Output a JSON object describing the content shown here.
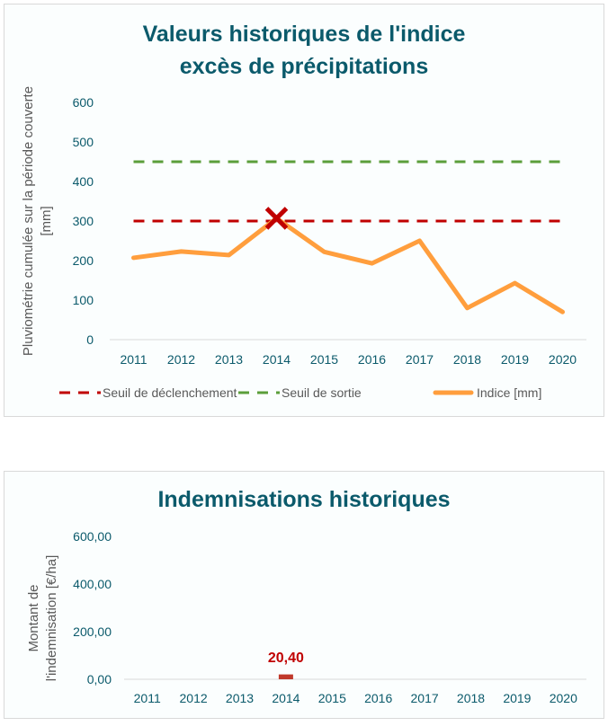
{
  "chart_data": [
    {
      "type": "line",
      "title": [
        "Valeurs historiques de l'indice",
        "excès de précipitations"
      ],
      "xlabel": "",
      "ylabel": [
        "Pluviométrie cumulée sur la période couverte",
        "[mm]"
      ],
      "categories": [
        "2011",
        "2012",
        "2013",
        "2014",
        "2015",
        "2016",
        "2017",
        "2018",
        "2019",
        "2020"
      ],
      "yticks": [
        "0",
        "100",
        "200",
        "300",
        "400",
        "500",
        "600"
      ],
      "ylim": [
        0,
        600
      ],
      "grid": false,
      "legend_position": "bottom",
      "series": [
        {
          "name": "Seuil de déclenchement",
          "style": "dashed",
          "color": "#c00000",
          "values": [
            300,
            300,
            300,
            300,
            300,
            300,
            300,
            300,
            300,
            300
          ]
        },
        {
          "name": "Seuil de sortie",
          "style": "dashed",
          "color": "#5b9e3a",
          "values": [
            450,
            450,
            450,
            450,
            450,
            450,
            450,
            450,
            450,
            450
          ]
        },
        {
          "name": "Indice [mm]",
          "style": "solid",
          "color": "#ff9e3d",
          "values": [
            207,
            223,
            214,
            307,
            222,
            193,
            250,
            80,
            143,
            70
          ]
        }
      ],
      "annotations": [
        {
          "type": "x-marker",
          "category": "2014",
          "value": 307,
          "color": "#c00000"
        }
      ]
    },
    {
      "type": "bar",
      "title": "Indemnisations historiques",
      "xlabel": "",
      "ylabel": [
        "Montant de",
        "l'indemnisation [€/ha]"
      ],
      "categories": [
        "2011",
        "2012",
        "2013",
        "2014",
        "2015",
        "2016",
        "2017",
        "2018",
        "2019",
        "2020"
      ],
      "yticks": [
        "0,00",
        "200,00",
        "400,00",
        "600,00"
      ],
      "ylim": [
        0,
        600
      ],
      "grid": false,
      "values": [
        0,
        0,
        0,
        20.4,
        0,
        0,
        0,
        0,
        0,
        0
      ],
      "bar_color": "#c0392b",
      "data_labels": [
        {
          "category": "2014",
          "text": "20,40",
          "color": "#c00000"
        }
      ]
    }
  ]
}
